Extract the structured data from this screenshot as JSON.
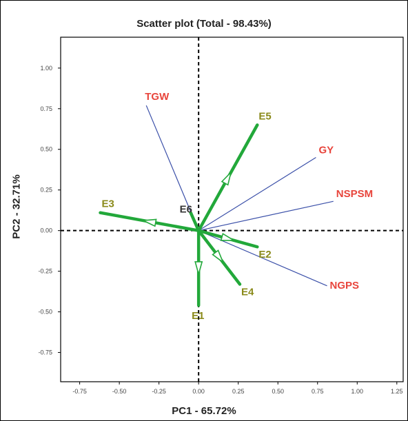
{
  "chart_data": {
    "type": "scatter",
    "title": "Scatter plot (Total - 98.43%)",
    "xlabel": "PC1 - 65.72%",
    "ylabel": "PC2 - 32.71%",
    "xlim": [
      -0.87,
      1.29
    ],
    "ylim": [
      -0.93,
      1.19
    ],
    "x_ticks": [
      "-0.75",
      "-0.50",
      "-0.25",
      "0.00",
      "0.25",
      "0.50",
      "0.75",
      "1.00",
      "1.25"
    ],
    "y_ticks": [
      "1.00",
      "0.75",
      "0.50",
      "0.25",
      "0.00",
      "-0.25",
      "-0.50",
      "-0.75"
    ],
    "grid": false,
    "reference_lines": "dashed lines at x=0 and y=0",
    "colors": {
      "trait_vector": "#3a4fa8",
      "trait_label": "#e8453c",
      "env_vector": "#22a83a",
      "env_label": "#8a8a1a"
    },
    "traits": [
      {
        "name": "TGW",
        "x": -0.33,
        "y": 0.77
      },
      {
        "name": "GY",
        "x": 0.74,
        "y": 0.45
      },
      {
        "name": "NSPSM",
        "x": 0.85,
        "y": 0.18
      },
      {
        "name": "NGPS",
        "x": 0.81,
        "y": -0.34
      }
    ],
    "environments": [
      {
        "name": "E5",
        "x": 0.37,
        "y": 0.65
      },
      {
        "name": "E3",
        "x": -0.62,
        "y": 0.11
      },
      {
        "name": "E6",
        "x": -0.05,
        "y": 0.11
      },
      {
        "name": "E2",
        "x": 0.37,
        "y": -0.1
      },
      {
        "name": "E4",
        "x": 0.26,
        "y": -0.33
      },
      {
        "name": "E1",
        "x": 0.0,
        "y": -0.46
      }
    ]
  }
}
